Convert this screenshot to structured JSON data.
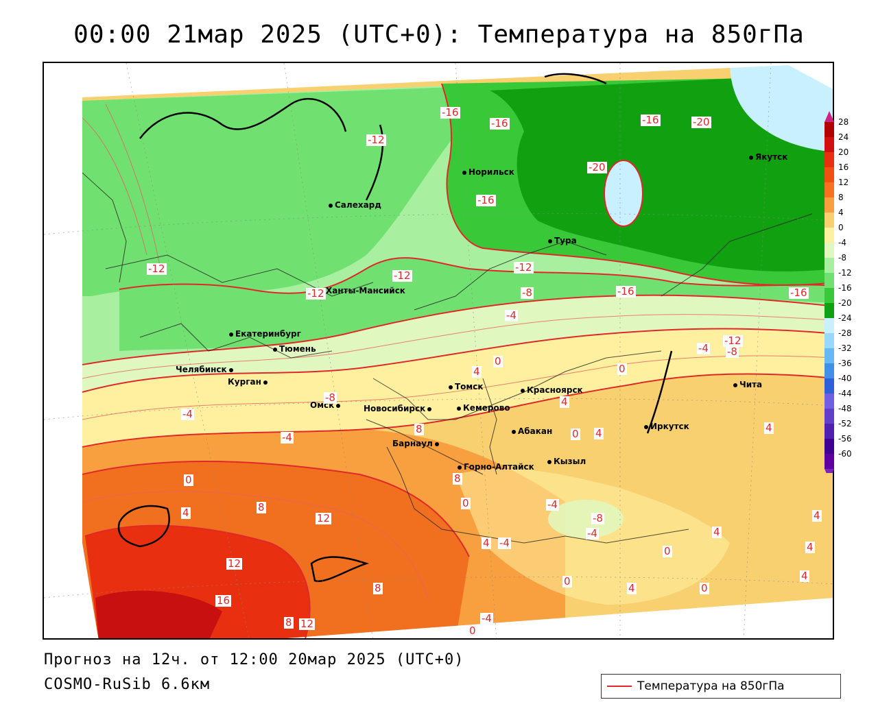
{
  "title": "00:00 21мар 2025 (UTC+0): Температура на 850гПа",
  "footer": {
    "forecast": "Прогноз на 12ч. от 12:00 20мар 2025 (UTC+0)",
    "model": "COSMO-RuSib 6.6км",
    "legend_label": "Температура на 850гПа"
  },
  "colorbar": {
    "labels": [
      "28",
      "24",
      "20",
      "16",
      "12",
      "8",
      "4",
      "0",
      "-4",
      "-8",
      "-12",
      "-16",
      "-20",
      "-24",
      "-28",
      "-32",
      "-36",
      "-40",
      "-44",
      "-48",
      "-52",
      "-56",
      "-60"
    ],
    "colors": [
      "#b00000",
      "#d01010",
      "#e83010",
      "#f05010",
      "#f87020",
      "#f8a040",
      "#f8d070",
      "#fff0a0",
      "#e0f8c0",
      "#a8f0a0",
      "#70e070",
      "#38c838",
      "#10a010",
      "#c8f0ff",
      "#98d8ff",
      "#68b8f8",
      "#4090e8",
      "#3060d8",
      "#7060e0",
      "#6040c8",
      "#5020b0",
      "#400090",
      "#6000a0"
    ]
  },
  "cities": [
    {
      "name": "Якутск"
    },
    {
      "name": "Норильск"
    },
    {
      "name": "Салехард"
    },
    {
      "name": "Тура"
    },
    {
      "name": "Ханты-Мансийск"
    },
    {
      "name": "Екатеринбург"
    },
    {
      "name": "Тюмень"
    },
    {
      "name": "Челябинск"
    },
    {
      "name": "Курган"
    },
    {
      "name": "Омск"
    },
    {
      "name": "Томск"
    },
    {
      "name": "Новосибирск"
    },
    {
      "name": "Кемерово"
    },
    {
      "name": "Красноярск"
    },
    {
      "name": "Барнаул"
    },
    {
      "name": "Абакан"
    },
    {
      "name": "Горно-Алтайск"
    },
    {
      "name": "Кызыл"
    },
    {
      "name": "Иркутск"
    },
    {
      "name": "Чита"
    }
  ],
  "isotherm_labels": [
    "-16",
    "-16",
    "-16",
    "-20",
    "-12",
    "-20",
    "-16",
    "-12",
    "-12",
    "-12",
    "-12",
    "-16",
    "-16",
    "-8",
    "-4",
    "-4",
    "-12",
    "-8",
    "0",
    "0",
    "4",
    "4",
    "-8",
    "-4",
    "-4",
    "8",
    "8",
    "4",
    "0",
    "4",
    "0",
    "4",
    "8",
    "12",
    "0",
    "-4",
    "-8",
    "-4",
    "12",
    "4",
    "-4",
    "4",
    "0",
    "4",
    "16",
    "8",
    "0",
    "4",
    "0",
    "4",
    "8",
    "12",
    "0",
    "-4",
    "4"
  ],
  "colors": {
    "accent_isotherm": "#e02828"
  }
}
